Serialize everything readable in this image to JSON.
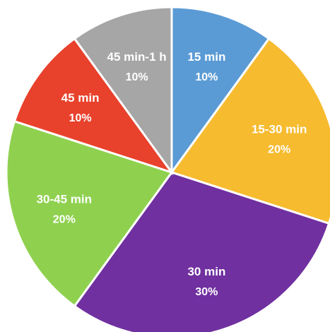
{
  "chart_data": {
    "type": "pie",
    "title": "",
    "start_angle_deg": 0,
    "direction": "clockwise",
    "slices": [
      {
        "label": "15 min",
        "value": 10,
        "display": "10%",
        "color": "#5b9bd5"
      },
      {
        "label": "15-30 min",
        "value": 20,
        "display": "20%",
        "color": "#f6bb2f"
      },
      {
        "label": "30 min",
        "value": 30,
        "display": "30%",
        "color": "#7030a0"
      },
      {
        "label": "30-45 min",
        "value": 20,
        "display": "20%",
        "color": "#8fd14f"
      },
      {
        "label": "45 min",
        "value": 10,
        "display": "10%",
        "color": "#e8412c"
      },
      {
        "label": "45 min-1 h",
        "value": 10,
        "display": "10%",
        "color": "#a6a6a6"
      }
    ]
  }
}
